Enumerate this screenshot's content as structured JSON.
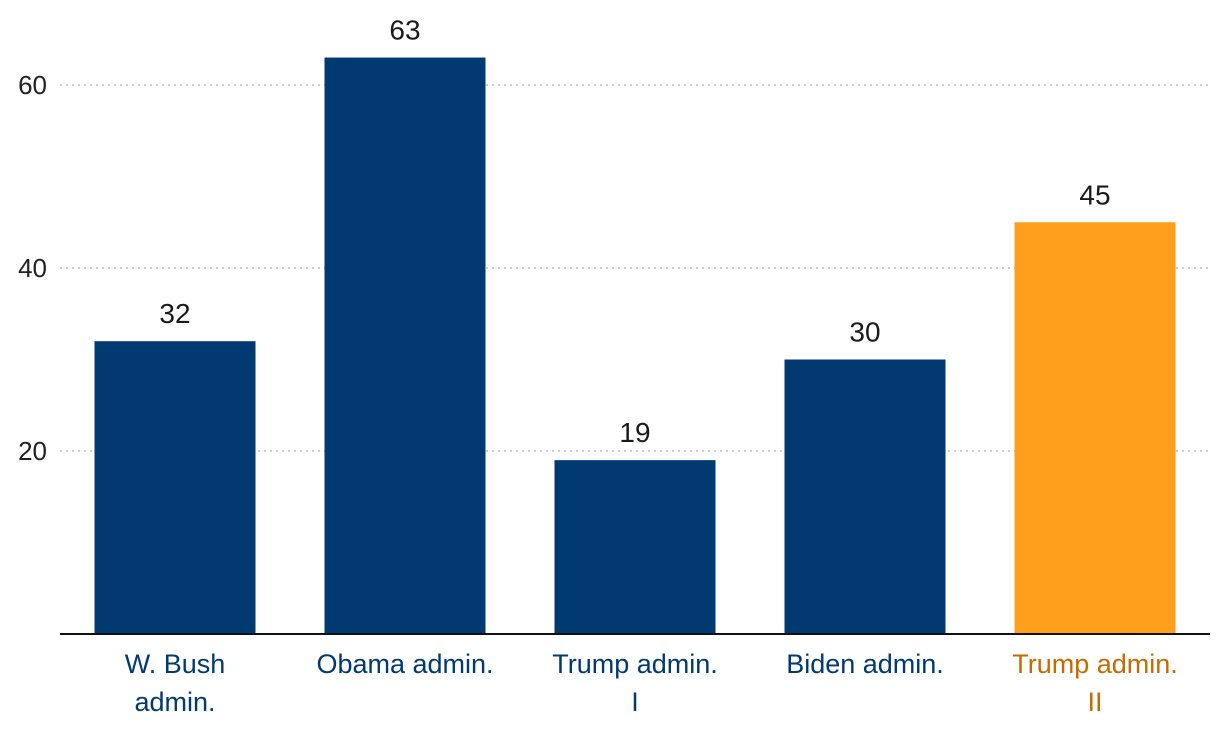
{
  "chart_data": {
    "type": "bar",
    "categories": [
      [
        "W. Bush",
        "admin."
      ],
      [
        "Obama admin."
      ],
      [
        "Trump admin.",
        "I"
      ],
      [
        "Biden admin."
      ],
      [
        "Trump admin.",
        "II"
      ]
    ],
    "values": [
      32,
      63,
      19,
      30,
      45
    ],
    "ylim": [
      0,
      70
    ],
    "yticks": [
      20,
      40,
      60
    ],
    "grid": true,
    "colors": {
      "bar_default": "#003a70",
      "bar_highlight": "#ff9f1c",
      "label_default": "#003a70",
      "label_highlight": "#c86a00"
    },
    "highlight_index": 4
  }
}
